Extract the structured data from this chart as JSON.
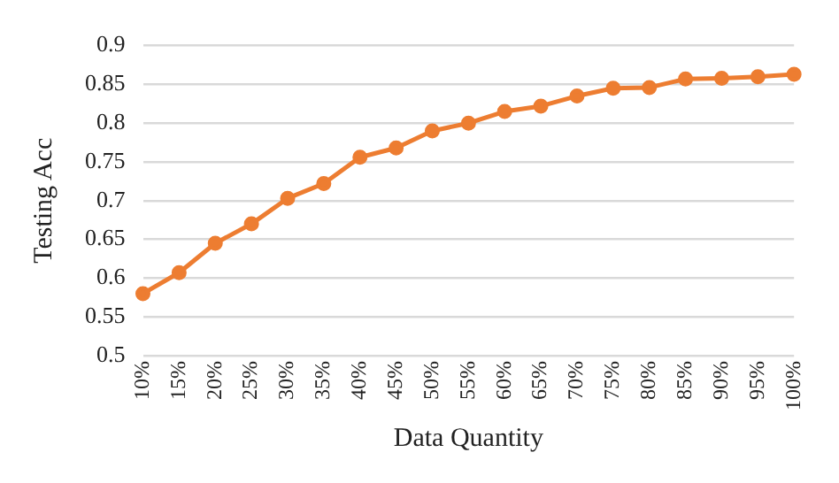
{
  "chart_data": {
    "type": "line",
    "xlabel": "Data Quantity",
    "ylabel": "Testing Acc",
    "categories": [
      "10%",
      "15%",
      "20%",
      "25%",
      "30%",
      "35%",
      "40%",
      "45%",
      "50%",
      "55%",
      "60%",
      "65%",
      "70%",
      "75%",
      "80%",
      "85%",
      "90%",
      "95%",
      "100%"
    ],
    "series": [
      {
        "color": "#ed7d31",
        "values": [
          0.58,
          0.607,
          0.645,
          0.67,
          0.703,
          0.722,
          0.756,
          0.768,
          0.79,
          0.8,
          0.815,
          0.822,
          0.835,
          0.845,
          0.846,
          0.857,
          0.858,
          0.86,
          0.863
        ]
      }
    ],
    "ylim": [
      0.5,
      0.9
    ],
    "yticks": [
      0.5,
      0.55,
      0.6,
      0.65,
      0.7,
      0.75,
      0.8,
      0.85,
      0.9
    ],
    "grid": "y",
    "marker": "circle",
    "line_style": "solid",
    "legend": false
  }
}
